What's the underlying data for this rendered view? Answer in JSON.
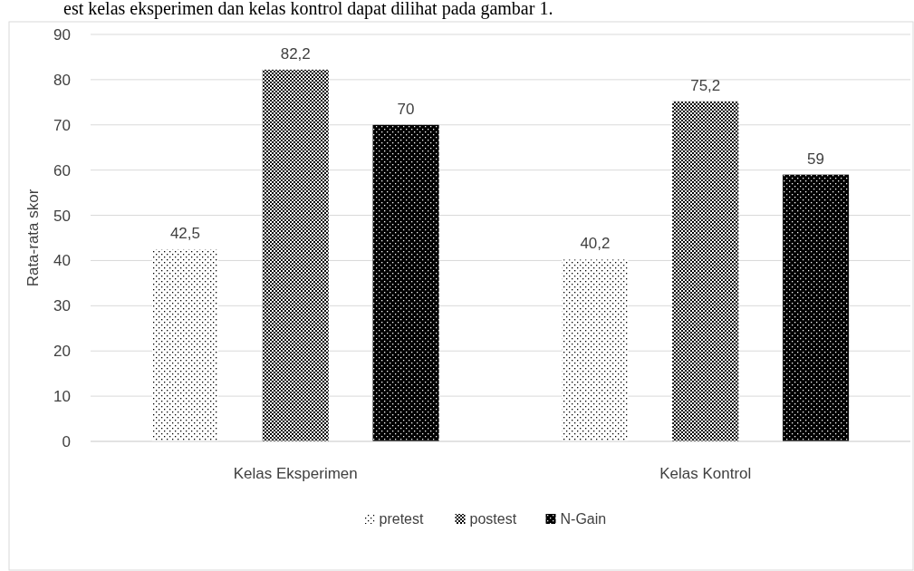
{
  "chart_data": {
    "type": "bar",
    "ylabel": "Rata-rata skor",
    "categories": [
      "Kelas Eksperimen",
      "Kelas Kontrol"
    ],
    "series": [
      {
        "name": "pretest",
        "color": "#ffffff",
        "values": [
          42.5,
          40.2
        ],
        "value_labels": [
          "42,5",
          "40,2"
        ]
      },
      {
        "name": "postest",
        "color": "#808080",
        "values": [
          82.2,
          75.2
        ],
        "value_labels": [
          "82,2",
          "75,2"
        ]
      },
      {
        "name": "N-Gain",
        "color": "#000000",
        "values": [
          70,
          59
        ],
        "value_labels": [
          "70",
          "59"
        ]
      }
    ],
    "ylim": [
      0,
      90
    ],
    "yticks": [
      0,
      10,
      20,
      30,
      40,
      50,
      60,
      70,
      80,
      90
    ],
    "grid": "y",
    "legend": "bottom",
    "annotations": [
      "est kelas eksperimen dan kelas kontrol dapat dilihat pada gambar 1."
    ]
  }
}
